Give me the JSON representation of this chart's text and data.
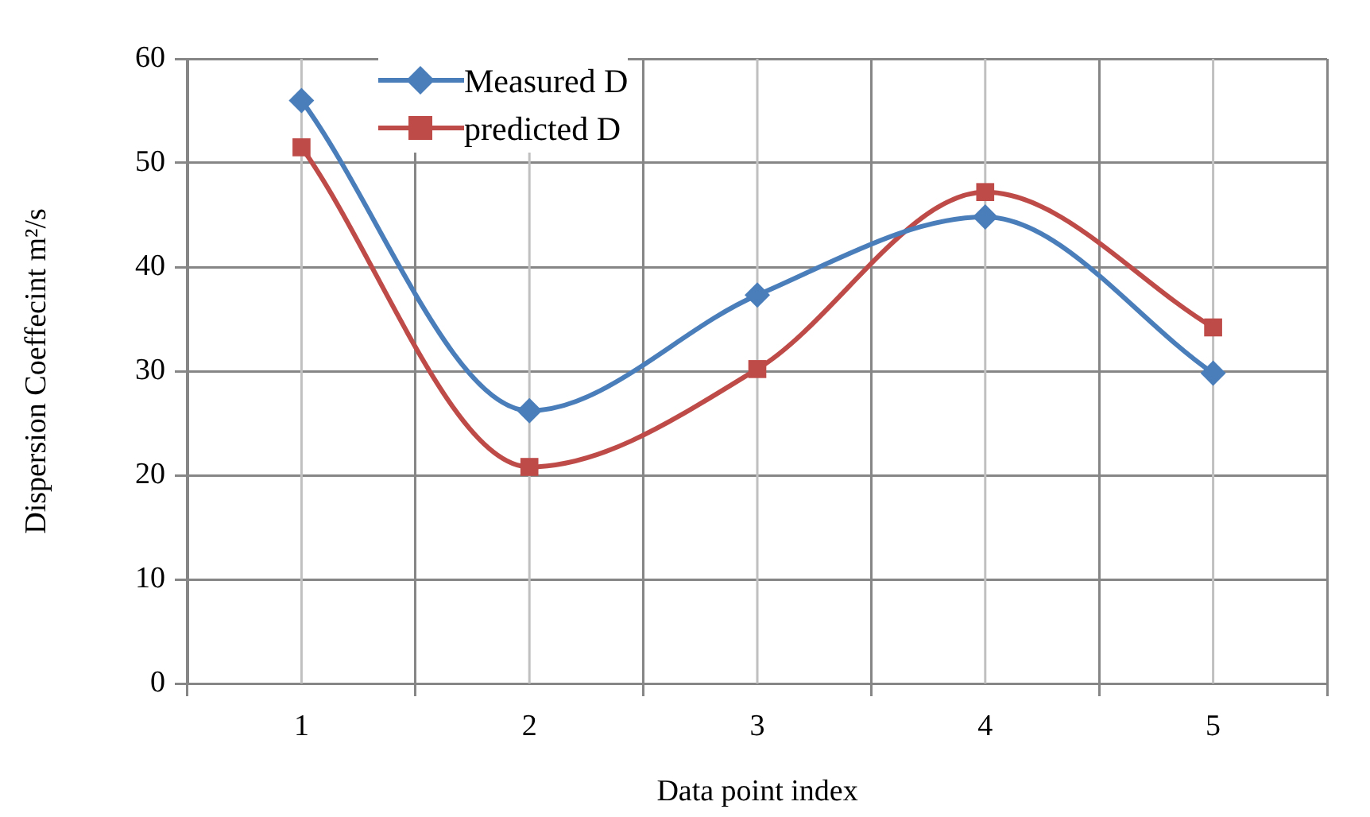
{
  "chart_data": {
    "type": "line",
    "xlabel": "Data point index",
    "ylabel": "Dispersion Coeffecint m²/s",
    "categories": [
      "1",
      "2",
      "3",
      "4",
      "5"
    ],
    "ylim": [
      0,
      60
    ],
    "yticks": [
      0,
      10,
      20,
      30,
      40,
      50,
      60
    ],
    "grid": true,
    "legend": "top left",
    "series": [
      {
        "name": "Measured D",
        "color": "#4a7ebb",
        "marker": "diamond",
        "values": [
          56,
          26.2,
          37.3,
          44.8,
          29.8
        ]
      },
      {
        "name": "predicted D",
        "color": "#be4b48",
        "marker": "square",
        "values": [
          51.5,
          20.8,
          30.2,
          47.2,
          34.2
        ]
      }
    ]
  }
}
